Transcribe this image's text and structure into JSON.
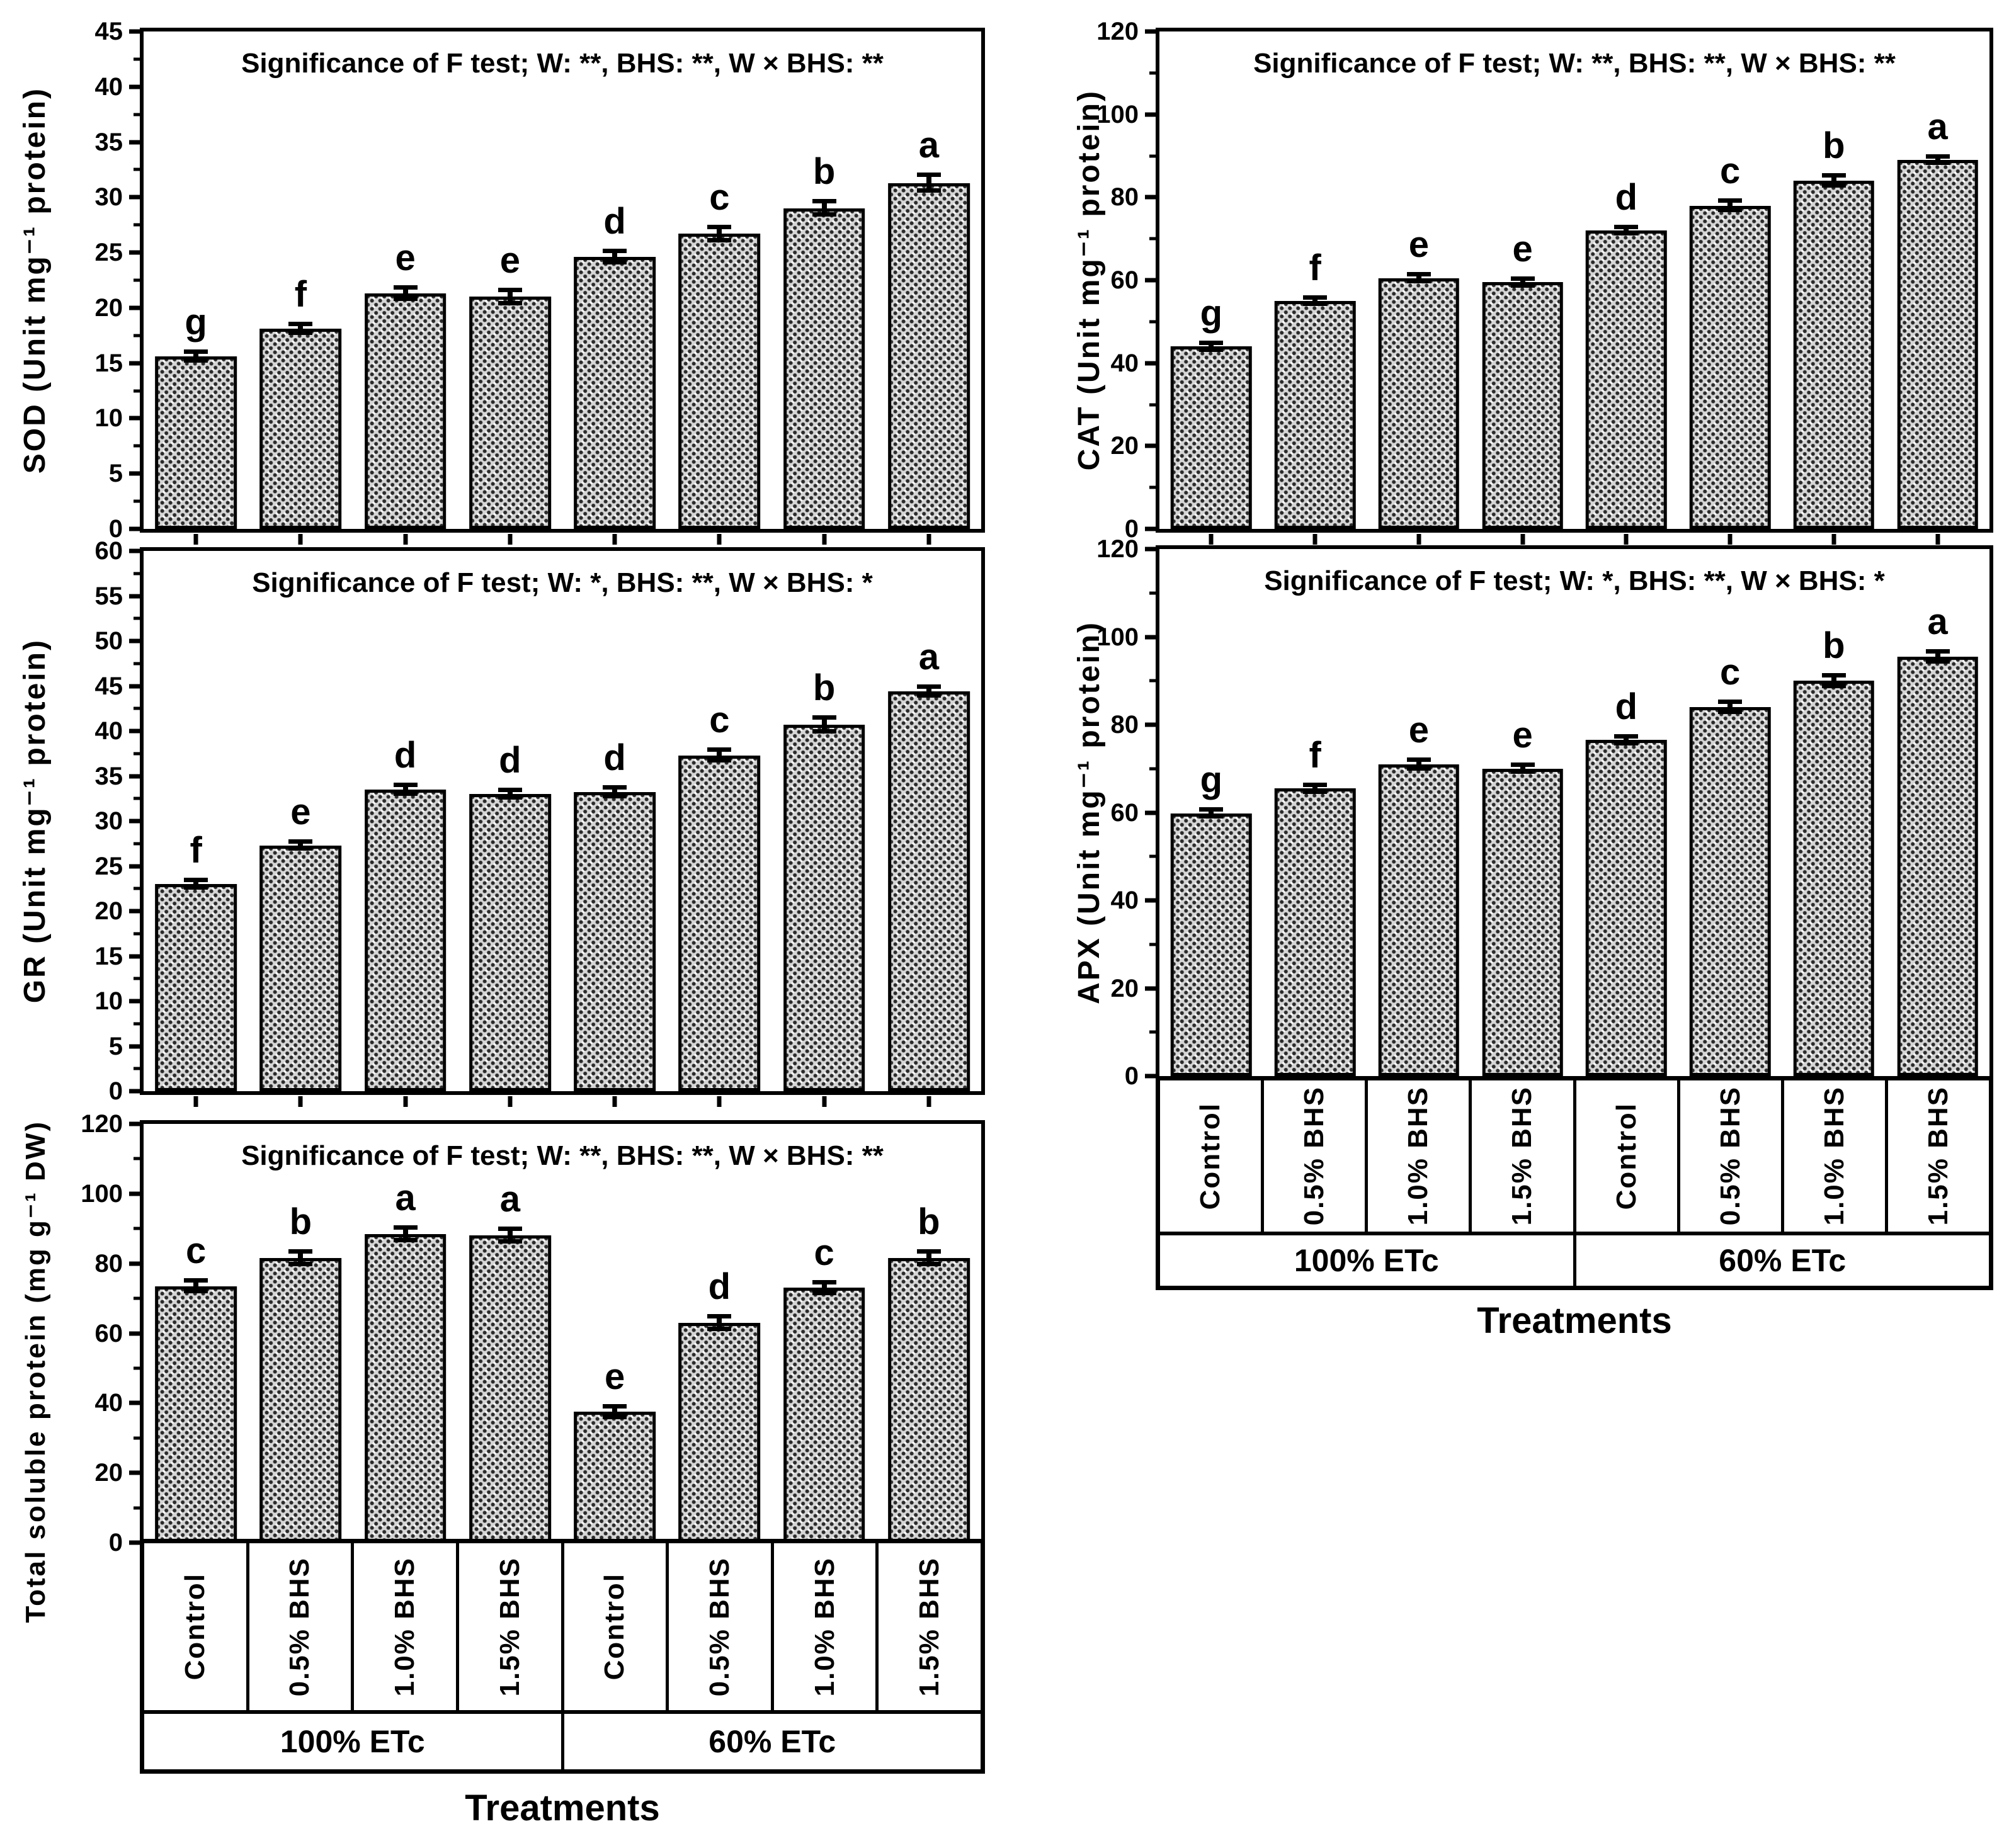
{
  "figure": {
    "xlabel": "Treatments",
    "treatment_labels": [
      "Control",
      "0.5% BHS",
      "1.0% BHS",
      "1.5% BHS",
      "Control",
      "0.5% BHS",
      "1.0% BHS",
      "1.5% BHS"
    ],
    "group_labels": [
      "100% ETc",
      "60% ETc"
    ],
    "bar_fill_color": "#d6d6d6",
    "axis_color": "#000000",
    "background_color": "#ffffff"
  },
  "chart_data": [
    {
      "id": "SOD",
      "type": "bar",
      "title": "Significance of F test; W: **, BHS: **, W × BHS: **",
      "ylabel": "SOD (Unit mg⁻¹ protein)",
      "xlabel": "Treatments",
      "ylim": [
        0,
        45
      ],
      "ytick_step": 5,
      "grid": false,
      "categories": [
        "Control",
        "0.5% BHS",
        "1.0% BHS",
        "1.5% BHS",
        "Control",
        "0.5% BHS",
        "1.0% BHS",
        "1.5% BHS"
      ],
      "values": [
        15.6,
        18.1,
        21.3,
        21.0,
        24.6,
        26.7,
        29.0,
        31.3
      ],
      "errors": [
        0.4,
        0.4,
        0.5,
        0.6,
        0.5,
        0.6,
        0.6,
        0.7
      ],
      "letters": [
        "g",
        "f",
        "e",
        "e",
        "d",
        "c",
        "b",
        "a"
      ]
    },
    {
      "id": "CAT",
      "type": "bar",
      "title": "Significance of F test; W: **, BHS: **, W × BHS: **",
      "ylabel": "CAT (Unit mg⁻¹ protein)",
      "xlabel": "Treatments",
      "ylim": [
        0,
        120
      ],
      "ytick_step": 20,
      "grid": false,
      "categories": [
        "Control",
        "0.5% BHS",
        "1.0% BHS",
        "1.5% BHS",
        "Control",
        "0.5% BHS",
        "1.0% BHS",
        "1.5% BHS"
      ],
      "values": [
        44,
        55,
        60.5,
        59.5,
        72,
        78,
        84,
        89
      ],
      "errors": [
        0.8,
        0.8,
        0.8,
        0.8,
        0.8,
        1.2,
        1.2,
        0.8
      ],
      "letters": [
        "g",
        "f",
        "e",
        "e",
        "d",
        "c",
        "b",
        "a"
      ]
    },
    {
      "id": "GR",
      "type": "bar",
      "title": "Significance of F test; W: *, BHS: **, W × BHS: *",
      "ylabel": "GR (Unit mg⁻¹ protein)",
      "xlabel": "Treatments",
      "ylim": [
        0,
        60
      ],
      "ytick_step": 5,
      "grid": false,
      "categories": [
        "Control",
        "0.5% BHS",
        "1.0% BHS",
        "1.5% BHS",
        "Control",
        "0.5% BHS",
        "1.0% BHS",
        "1.5% BHS"
      ],
      "values": [
        23.0,
        27.3,
        33.5,
        33.0,
        33.2,
        37.3,
        40.7,
        44.4
      ],
      "errors": [
        0.4,
        0.4,
        0.5,
        0.4,
        0.5,
        0.6,
        0.8,
        0.5
      ],
      "letters": [
        "f",
        "e",
        "d",
        "d",
        "d",
        "c",
        "b",
        "a"
      ]
    },
    {
      "id": "APX",
      "type": "bar",
      "title": "Significance of F test; W: *, BHS: **, W × BHS: *",
      "ylabel": "APX (Unit mg⁻¹ protein)",
      "xlabel": "Treatments",
      "ylim": [
        0,
        120
      ],
      "ytick_step": 20,
      "grid": false,
      "categories": [
        "Control",
        "0.5% BHS",
        "1.0% BHS",
        "1.5% BHS",
        "Control",
        "0.5% BHS",
        "1.0% BHS",
        "1.5% BHS"
      ],
      "values": [
        59.8,
        65.5,
        71,
        70,
        76.5,
        84,
        90,
        95.5
      ],
      "errors": [
        0.8,
        0.8,
        1.0,
        0.8,
        0.8,
        1.2,
        1.2,
        1.2
      ],
      "letters": [
        "g",
        "f",
        "e",
        "e",
        "d",
        "c",
        "b",
        "a"
      ]
    },
    {
      "id": "TSP",
      "type": "bar",
      "title": "Significance of F test; W: **, BHS: **, W × BHS: **",
      "ylabel": "Total soluble protein (mg g⁻¹ DW)",
      "xlabel": "Treatments",
      "ylim": [
        0,
        120
      ],
      "ytick_step": 20,
      "grid": false,
      "categories": [
        "Control",
        "0.5% BHS",
        "1.0% BHS",
        "1.5% BHS",
        "Control",
        "0.5% BHS",
        "1.0% BHS",
        "1.5% BHS"
      ],
      "values": [
        73.5,
        81.5,
        88.5,
        88,
        37.5,
        63,
        73,
        81.5
      ],
      "errors": [
        1.5,
        1.8,
        1.8,
        1.8,
        1.5,
        1.8,
        1.5,
        1.8
      ],
      "letters": [
        "c",
        "b",
        "a",
        "a",
        "e",
        "d",
        "c",
        "b"
      ]
    }
  ]
}
